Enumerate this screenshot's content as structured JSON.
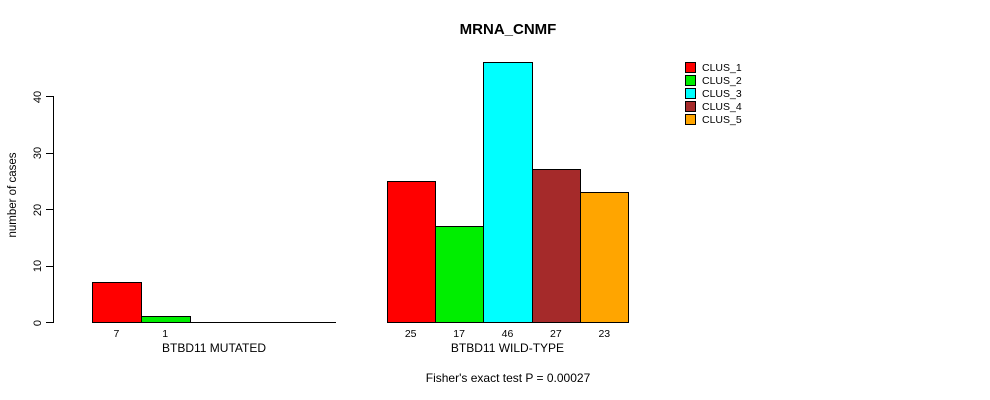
{
  "chart_data": {
    "type": "bar",
    "title": "MRNA_CNMF",
    "ylabel": "number of cases",
    "xlabel": "",
    "annotation": "Fisher's exact test P = 0.00027",
    "ylim": [
      0,
      46
    ],
    "yticks": [
      0,
      10,
      20,
      30,
      40
    ],
    "grid": false,
    "legend_position": "top-right",
    "clusters": [
      {
        "name": "CLUS_1",
        "color": "#FF0000"
      },
      {
        "name": "CLUS_2",
        "color": "#00EE00"
      },
      {
        "name": "CLUS_3",
        "color": "#00FFFF"
      },
      {
        "name": "CLUS_4",
        "color": "#A52A2A"
      },
      {
        "name": "CLUS_5",
        "color": "#FFA500"
      }
    ],
    "groups": [
      {
        "label": "BTBD11 MUTATED",
        "slots": 5,
        "bars": [
          {
            "cluster": "CLUS_1",
            "value": 7
          },
          {
            "cluster": "CLUS_2",
            "value": 1
          }
        ]
      },
      {
        "label": "BTBD11 WILD-TYPE",
        "slots": 5,
        "bars": [
          {
            "cluster": "CLUS_1",
            "value": 25
          },
          {
            "cluster": "CLUS_2",
            "value": 17
          },
          {
            "cluster": "CLUS_3",
            "value": 46
          },
          {
            "cluster": "CLUS_4",
            "value": 27
          },
          {
            "cluster": "CLUS_5",
            "value": 23
          }
        ]
      }
    ]
  }
}
